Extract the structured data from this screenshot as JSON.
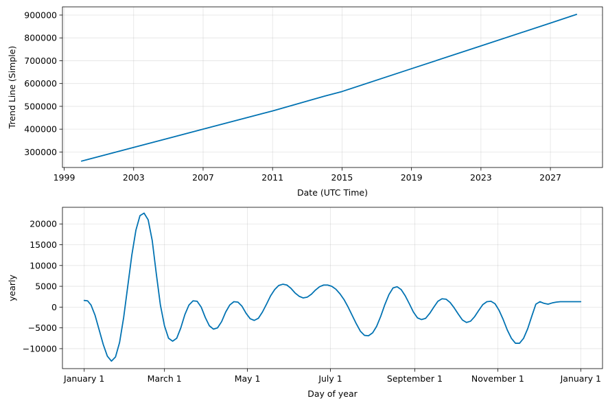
{
  "chart_data": [
    {
      "type": "line",
      "xlabel": "Date (UTC Time)",
      "ylabel": "Trend Line (Simple)",
      "x_tick_labels": [
        "1999",
        "2003",
        "2007",
        "2011",
        "2015",
        "2019",
        "2023",
        "2027"
      ],
      "x_tick_values": [
        1999,
        2003,
        2007,
        2011,
        2015,
        2019,
        2023,
        2027
      ],
      "y_tick_labels": [
        "300000",
        "400000",
        "500000",
        "600000",
        "700000",
        "800000",
        "900000"
      ],
      "y_tick_values": [
        300000,
        400000,
        500000,
        600000,
        700000,
        800000,
        900000
      ],
      "xlim": [
        1998.9,
        2030.0
      ],
      "ylim": [
        232000,
        936000
      ],
      "grid": true,
      "color": "#0072B2",
      "series": [
        {
          "x": [
            2000.0,
            2003.0,
            2007.0,
            2011.0,
            2014.0,
            2015.0,
            2019.0,
            2023.0,
            2027.0,
            2028.5
          ],
          "values": [
            260000,
            320000,
            400000,
            480000,
            545000,
            565000,
            665000,
            765000,
            865000,
            903000
          ]
        }
      ]
    },
    {
      "type": "line",
      "xlabel": "Day of year",
      "ylabel": "yearly",
      "x_tick_labels": [
        "January 1",
        "March 1",
        "May 1",
        "July 1",
        "September 1",
        "November 1",
        "January 1"
      ],
      "x_tick_values": [
        0,
        59,
        120,
        181,
        243,
        304,
        365
      ],
      "y_tick_labels": [
        "−10000",
        "−5000",
        "0",
        "5000",
        "10000",
        "15000",
        "20000"
      ],
      "y_tick_values": [
        -10000,
        -5000,
        0,
        5000,
        10000,
        15000,
        20000
      ],
      "xlim": [
        -16,
        381
      ],
      "ylim": [
        -14800,
        24000
      ],
      "grid": true,
      "color": "#0072B2",
      "series": [
        {
          "x": [
            0,
            2.5,
            5,
            8,
            11,
            14,
            17,
            20,
            23,
            26,
            29,
            32,
            35,
            38,
            41,
            44,
            47,
            50,
            53,
            56,
            59,
            62,
            65,
            68,
            71,
            74,
            77,
            80,
            83,
            86,
            89,
            92,
            95,
            98,
            101,
            104,
            107,
            110,
            113,
            116,
            119,
            122,
            125,
            128,
            131,
            134,
            137,
            140,
            143,
            146,
            149,
            152,
            155,
            158,
            161,
            164,
            167,
            170,
            173,
            176,
            179,
            182,
            185,
            188,
            191,
            194,
            197,
            200,
            203,
            206,
            209,
            212,
            215,
            218,
            221,
            224,
            227,
            230,
            233,
            236,
            239,
            242,
            245,
            248,
            251,
            254,
            257,
            260,
            263,
            266,
            269,
            272,
            275,
            278,
            281,
            284,
            287,
            290,
            293,
            296,
            299,
            302,
            305,
            308,
            311,
            314,
            317,
            320,
            323,
            326,
            329,
            332,
            335,
            338,
            341,
            344,
            347,
            350,
            353,
            356,
            359,
            362,
            365
          ],
          "values": [
            1600,
            1500,
            500,
            -2000,
            -5500,
            -9000,
            -11800,
            -13000,
            -12000,
            -8500,
            -2500,
            5000,
            12500,
            18500,
            22000,
            22600,
            21000,
            16000,
            8000,
            500,
            -4500,
            -7500,
            -8200,
            -7500,
            -5000,
            -1800,
            500,
            1500,
            1400,
            0,
            -2500,
            -4500,
            -5300,
            -5000,
            -3500,
            -1200,
            500,
            1300,
            1200,
            200,
            -1500,
            -2800,
            -3200,
            -2700,
            -1200,
            700,
            2700,
            4200,
            5200,
            5500,
            5300,
            4500,
            3400,
            2600,
            2200,
            2400,
            3100,
            4100,
            4900,
            5300,
            5300,
            5000,
            4300,
            3200,
            1800,
            0,
            -2000,
            -4000,
            -5800,
            -6800,
            -6900,
            -6200,
            -4600,
            -2200,
            600,
            3000,
            4600,
            4900,
            4200,
            2700,
            800,
            -1200,
            -2600,
            -3000,
            -2700,
            -1500,
            0,
            1400,
            2000,
            1900,
            1100,
            -200,
            -1700,
            -3100,
            -3700,
            -3400,
            -2300,
            -800,
            600,
            1300,
            1400,
            800,
            -800,
            -3000,
            -5500,
            -7500,
            -8700,
            -8700,
            -7500,
            -5200,
            -2200,
            700,
            1300,
            900,
            700,
            1000,
            1200,
            1300,
            1300,
            1300,
            1300,
            1300,
            1300
          ]
        }
      ]
    }
  ]
}
